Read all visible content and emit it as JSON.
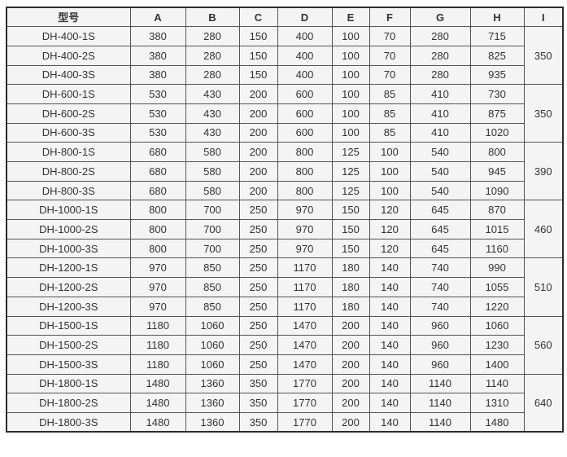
{
  "table": {
    "columns": [
      "型号",
      "A",
      "B",
      "C",
      "D",
      "E",
      "F",
      "G",
      "H",
      "I"
    ],
    "groups": [
      {
        "i": "350",
        "rows": [
          {
            "model": "DH-400-1S",
            "values": [
              "380",
              "280",
              "150",
              "400",
              "100",
              "70",
              "280",
              "715"
            ]
          },
          {
            "model": "DH-400-2S",
            "values": [
              "380",
              "280",
              "150",
              "400",
              "100",
              "70",
              "280",
              "825"
            ]
          },
          {
            "model": "DH-400-3S",
            "values": [
              "380",
              "280",
              "150",
              "400",
              "100",
              "70",
              "280",
              "935"
            ]
          }
        ]
      },
      {
        "i": "350",
        "rows": [
          {
            "model": "DH-600-1S",
            "values": [
              "530",
              "430",
              "200",
              "600",
              "100",
              "85",
              "410",
              "730"
            ]
          },
          {
            "model": "DH-600-2S",
            "values": [
              "530",
              "430",
              "200",
              "600",
              "100",
              "85",
              "410",
              "875"
            ]
          },
          {
            "model": "DH-600-3S",
            "values": [
              "530",
              "430",
              "200",
              "600",
              "100",
              "85",
              "410",
              "1020"
            ]
          }
        ]
      },
      {
        "i": "390",
        "rows": [
          {
            "model": "DH-800-1S",
            "values": [
              "680",
              "580",
              "200",
              "800",
              "125",
              "100",
              "540",
              "800"
            ]
          },
          {
            "model": "DH-800-2S",
            "values": [
              "680",
              "580",
              "200",
              "800",
              "125",
              "100",
              "540",
              "945"
            ]
          },
          {
            "model": "DH-800-3S",
            "values": [
              "680",
              "580",
              "200",
              "800",
              "125",
              "100",
              "540",
              "1090"
            ]
          }
        ]
      },
      {
        "i": "460",
        "rows": [
          {
            "model": "DH-1000-1S",
            "values": [
              "800",
              "700",
              "250",
              "970",
              "150",
              "120",
              "645",
              "870"
            ]
          },
          {
            "model": "DH-1000-2S",
            "values": [
              "800",
              "700",
              "250",
              "970",
              "150",
              "120",
              "645",
              "1015"
            ]
          },
          {
            "model": "DH-1000-3S",
            "values": [
              "800",
              "700",
              "250",
              "970",
              "150",
              "120",
              "645",
              "1160"
            ]
          }
        ]
      },
      {
        "i": "510",
        "rows": [
          {
            "model": "DH-1200-1S",
            "values": [
              "970",
              "850",
              "250",
              "1170",
              "180",
              "140",
              "740",
              "990"
            ]
          },
          {
            "model": "DH-1200-2S",
            "values": [
              "970",
              "850",
              "250",
              "1170",
              "180",
              "140",
              "740",
              "1055"
            ]
          },
          {
            "model": "DH-1200-3S",
            "values": [
              "970",
              "850",
              "250",
              "1170",
              "180",
              "140",
              "740",
              "1220"
            ]
          }
        ]
      },
      {
        "i": "560",
        "rows": [
          {
            "model": "DH-1500-1S",
            "values": [
              "1180",
              "1060",
              "250",
              "1470",
              "200",
              "140",
              "960",
              "1060"
            ]
          },
          {
            "model": "DH-1500-2S",
            "values": [
              "1180",
              "1060",
              "250",
              "1470",
              "200",
              "140",
              "960",
              "1230"
            ]
          },
          {
            "model": "DH-1500-3S",
            "values": [
              "1180",
              "1060",
              "250",
              "1470",
              "200",
              "140",
              "960",
              "1400"
            ]
          }
        ]
      },
      {
        "i": "640",
        "rows": [
          {
            "model": "DH-1800-1S",
            "values": [
              "1480",
              "1360",
              "350",
              "1770",
              "200",
              "140",
              "1140",
              "1140"
            ]
          },
          {
            "model": "DH-1800-2S",
            "values": [
              "1480",
              "1360",
              "350",
              "1770",
              "200",
              "140",
              "1140",
              "1310"
            ]
          },
          {
            "model": "DH-1800-3S",
            "values": [
              "1480",
              "1360",
              "350",
              "1770",
              "200",
              "140",
              "1140",
              "1480"
            ]
          }
        ]
      }
    ]
  },
  "colors": {
    "page_bg": "#ffffff",
    "cell_bg": "#f4f4f4",
    "inner_border": "#555555",
    "outer_border": "#2b2b2b",
    "text": "#333333"
  }
}
